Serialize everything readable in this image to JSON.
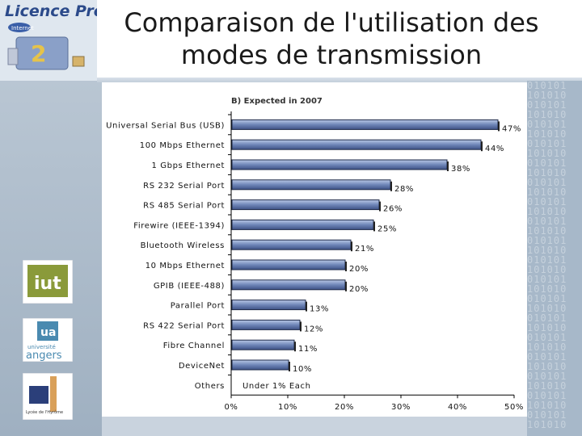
{
  "slide": {
    "title_line1": "Comparaison de l'utilisation des",
    "title_line2": "modes de transmission",
    "logo_text": "Licence Pro",
    "logo_sub": "Internet",
    "iut_text": "iut",
    "angers_top": "université",
    "angers_text": "angers",
    "ua_text": "ua",
    "lycee_text": "Lycée de l'Hyrôme",
    "binary_pattern": "010101"
  },
  "chart_data": {
    "type": "bar",
    "orientation": "horizontal",
    "title": "B) Expected in 2007",
    "categories": [
      "Universal Serial Bus (USB)",
      "100 Mbps Ethernet",
      "1 Gbps Ethernet",
      "RS 232 Serial Port",
      "RS 485 Serial Port",
      "Firewire (IEEE-1394)",
      "Bluetooth Wireless",
      "10 Mbps Ethernet",
      "GPIB (IEEE-488)",
      "Parallel Port",
      "RS 422 Serial Port",
      "Fibre Channel",
      "DeviceNet",
      "Others"
    ],
    "values": [
      47,
      44,
      38,
      28,
      26,
      25,
      21,
      20,
      20,
      13,
      12,
      11,
      10,
      0
    ],
    "value_labels": [
      "47%",
      "44%",
      "38%",
      "28%",
      "26%",
      "25%",
      "21%",
      "20%",
      "20%",
      "13%",
      "12%",
      "11%",
      "10%",
      "Under 1% Each"
    ],
    "xlim": [
      0,
      50
    ],
    "xticks": [
      "0%",
      "10%",
      "20%",
      "30%",
      "40%",
      "50%"
    ],
    "grid": false,
    "bar_color": "#6f86b8"
  }
}
